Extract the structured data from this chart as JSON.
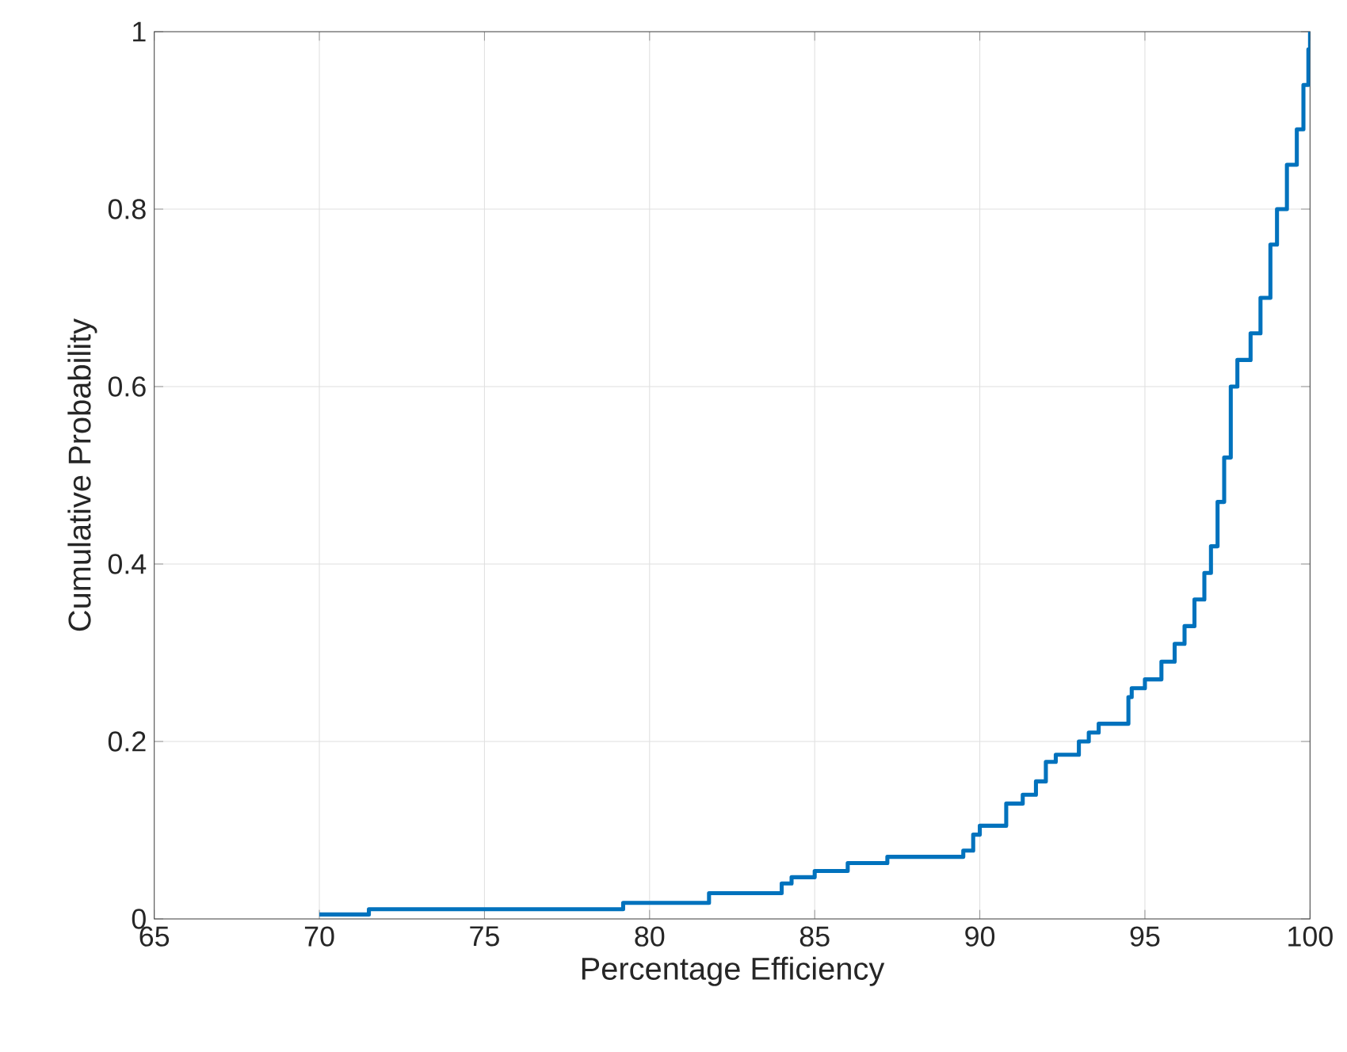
{
  "chart_data": {
    "type": "step",
    "xlabel": "Percentage Efficiency",
    "ylabel": "Cumulative Probability",
    "x": [
      70,
      71.5,
      79.2,
      81.8,
      84,
      84.3,
      85,
      86,
      87.2,
      89.5,
      89.8,
      90,
      90.8,
      91.3,
      91.7,
      92,
      92.3,
      93,
      93.3,
      93.6,
      94.5,
      94.6,
      95,
      95.5,
      95.9,
      96.2,
      96.5,
      96.8,
      97,
      97.2,
      97.4,
      97.6,
      97.8,
      98.2,
      98.5,
      98.8,
      99,
      99.3,
      99.6,
      99.8,
      99.95,
      100
    ],
    "series": [
      {
        "color": "#0072bd",
        "values": [
          0.005,
          0.011,
          0.018,
          0.029,
          0.04,
          0.047,
          0.054,
          0.063,
          0.07,
          0.077,
          0.095,
          0.105,
          0.13,
          0.14,
          0.155,
          0.177,
          0.185,
          0.2,
          0.21,
          0.22,
          0.25,
          0.26,
          0.27,
          0.29,
          0.31,
          0.33,
          0.36,
          0.39,
          0.42,
          0.47,
          0.52,
          0.6,
          0.63,
          0.66,
          0.7,
          0.76,
          0.8,
          0.85,
          0.89,
          0.94,
          0.98,
          1
        ]
      }
    ],
    "xlim": [
      65,
      100
    ],
    "ylim": [
      0,
      1
    ],
    "xticks": [
      65,
      70,
      75,
      80,
      85,
      90,
      95,
      100
    ],
    "yticks": [
      0,
      {
        "value": 0.2,
        "label": "0.2"
      },
      {
        "value": 0.4,
        "label": "0.4"
      },
      {
        "value": 0.6,
        "label": "0.6"
      },
      {
        "value": 0.8,
        "label": "0.8"
      },
      1
    ],
    "grid": true,
    "line_style": "solid",
    "marker": "none"
  }
}
